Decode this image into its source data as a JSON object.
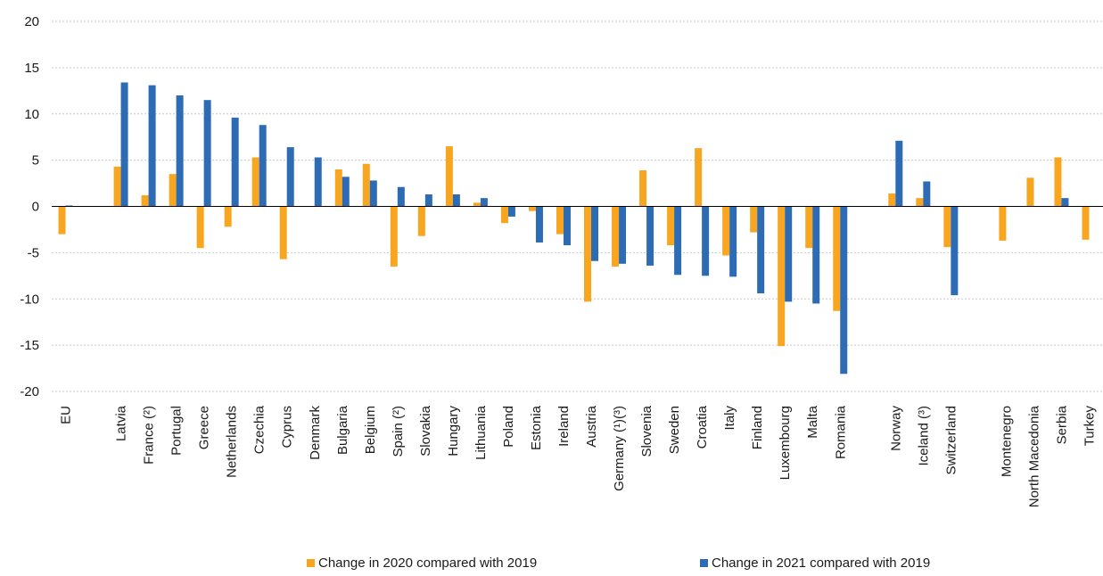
{
  "chart_data": {
    "type": "bar",
    "title": "",
    "xlabel": "",
    "ylabel": "",
    "ylim": [
      -20,
      20
    ],
    "yticks": [
      20,
      15,
      10,
      5,
      0,
      -5,
      -10,
      -15,
      -20
    ],
    "grid": true,
    "legend_position": "bottom",
    "categories": [
      "EU",
      "",
      "Latvia",
      "France (²)",
      "Portugal",
      "Greece",
      "Netherlands",
      "Czechia",
      "Cyprus",
      "Denmark",
      "Bulgaria",
      "Belgium",
      "Spain (²)",
      "Slovakia",
      "Hungary",
      "Lithuania",
      "Poland",
      "Estonia",
      "Ireland",
      "Austria",
      "Germany (¹)(³)",
      "Slovenia",
      "Sweden",
      "Croatia",
      "Italy",
      "Finland",
      "Luxembourg",
      "Malta",
      "Romania",
      "",
      "Norway",
      "Iceland (³)",
      "Switzerland",
      "",
      "Montenegro",
      "North Macedonia",
      "Serbia",
      "Turkey"
    ],
    "series": [
      {
        "name": "Change in 2020 compared with 2019",
        "color": "#F8A51F",
        "values": [
          -3.0,
          null,
          4.3,
          1.2,
          3.5,
          -4.5,
          -2.2,
          5.3,
          -5.7,
          null,
          4.0,
          4.6,
          -6.5,
          -3.2,
          6.5,
          0.4,
          -1.8,
          -0.5,
          -3.0,
          -10.3,
          -6.5,
          3.9,
          -4.2,
          6.3,
          -5.3,
          -2.8,
          -15.1,
          -4.5,
          -11.3,
          null,
          1.4,
          0.9,
          -4.4,
          null,
          -3.7,
          3.1,
          5.3,
          -3.6
        ]
      },
      {
        "name": "Change in 2021 compared with 2019",
        "color": "#2D6CB5",
        "values": [
          0.1,
          null,
          13.4,
          13.1,
          12.0,
          11.5,
          9.6,
          8.8,
          6.4,
          5.3,
          3.2,
          2.8,
          2.1,
          1.3,
          1.3,
          0.9,
          -1.1,
          -3.9,
          -4.2,
          -5.9,
          -6.2,
          -6.4,
          -7.4,
          -7.5,
          -7.6,
          -9.4,
          -10.3,
          -10.5,
          -18.1,
          null,
          7.1,
          2.7,
          -9.6,
          null,
          null,
          null,
          0.9,
          null
        ]
      }
    ]
  }
}
